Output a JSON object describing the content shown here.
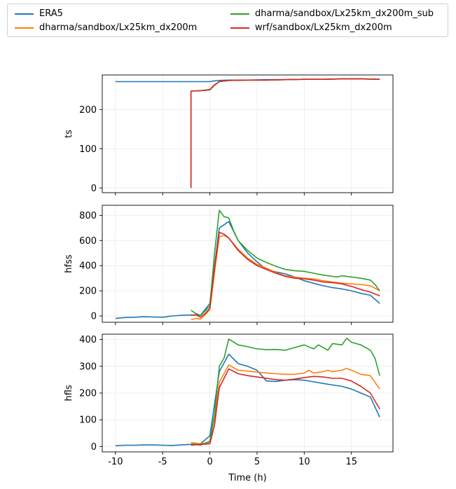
{
  "chart_data": {
    "type": "line",
    "xlabel": "Time (h)",
    "xlim": [
      -11.4,
      19.4
    ],
    "xticks": [
      -10,
      -5,
      0,
      5,
      10,
      15
    ],
    "legend_placement": "top",
    "grid": true,
    "legend": [
      {
        "name": "ERA5",
        "color": "#1f77b4"
      },
      {
        "name": "dharma/sandbox/Lx25km_dx200m",
        "color": "#ff7f0e"
      },
      {
        "name": "dharma/sandbox/Lx25km_dx200m_sub",
        "color": "#2ca02c"
      },
      {
        "name": "wrf/sandbox/Lx25km_dx200m",
        "color": "#d62728"
      }
    ],
    "panels": [
      {
        "ylabel": "ts",
        "ylim": [
          -12,
          288
        ],
        "yticks": [
          0,
          100,
          200
        ],
        "series": [
          {
            "color": "#1f77b4",
            "x": [
              -10,
              -8,
              -6,
              -4,
              -2,
              0,
              0.5,
              1,
              2,
              4,
              6,
              8,
              10,
              12,
              14,
              16,
              18
            ],
            "y": [
              271,
              271,
              271,
              271,
              271,
              271,
              273,
              274,
              275,
              275,
              276,
              276,
              277,
              277,
              278,
              278,
              277
            ]
          },
          {
            "color": "#ff7f0e",
            "x": [
              -2,
              -2,
              -1,
              0,
              0.5,
              1,
              2,
              4,
              6,
              8,
              10,
              12,
              14,
              16,
              18
            ],
            "y": [
              0,
              247,
              248,
              250,
              262,
              271,
              274,
              275,
              275,
              276,
              277,
              277,
              278,
              278,
              277
            ]
          },
          {
            "color": "#2ca02c",
            "x": [
              -2,
              -2,
              -1,
              0,
              0.5,
              1,
              2,
              4,
              6,
              8,
              10,
              12,
              14,
              16,
              18
            ],
            "y": [
              0,
              247,
              248,
              250,
              262,
              271,
              274,
              275,
              275,
              276,
              277,
              277,
              278,
              278,
              277
            ]
          },
          {
            "color": "#d62728",
            "x": [
              -2,
              -2,
              -1,
              0,
              0.5,
              1,
              2,
              4,
              6,
              8,
              10,
              12,
              14,
              16,
              18
            ],
            "y": [
              0,
              247,
              248,
              251,
              263,
              271,
              274,
              275,
              275,
              276,
              277,
              277,
              278,
              278,
              277
            ]
          }
        ]
      },
      {
        "ylabel": "hfss",
        "ylim": [
          -50,
          880
        ],
        "yticks": [
          0,
          200,
          400,
          600,
          800
        ],
        "series": [
          {
            "color": "#1f77b4",
            "x": [
              -10,
              -9,
              -8,
              -7,
              -6,
              -5,
              -4,
              -3,
              -2,
              -1,
              0,
              1,
              2,
              3,
              4,
              5,
              6,
              7,
              8,
              9,
              10,
              11,
              12,
              13,
              14,
              15,
              16,
              17,
              18
            ],
            "y": [
              -20,
              -12,
              -10,
              -6,
              -8,
              -10,
              0,
              5,
              8,
              5,
              100,
              700,
              750,
              600,
              500,
              430,
              370,
              350,
              335,
              310,
              280,
              260,
              240,
              225,
              215,
              200,
              180,
              165,
              100
            ]
          },
          {
            "color": "#ff7f0e",
            "x": [
              -2,
              -1.5,
              -1,
              -0.5,
              0,
              0.5,
              1,
              1.5,
              2,
              3,
              4,
              5,
              6,
              7,
              8,
              9,
              10,
              11,
              12,
              13,
              14,
              15,
              16,
              17,
              18
            ],
            "y": [
              -30,
              -20,
              -25,
              10,
              50,
              350,
              630,
              640,
              620,
              530,
              460,
              410,
              380,
              345,
              320,
              310,
              300,
              295,
              280,
              270,
              260,
              255,
              250,
              240,
              200
            ]
          },
          {
            "color": "#2ca02c",
            "x": [
              -2,
              -1.5,
              -1,
              -0.5,
              0,
              0.5,
              1,
              1.5,
              2,
              2.5,
              3,
              4,
              5,
              6,
              7,
              8,
              9,
              10,
              11,
              12,
              13,
              13.5,
              14,
              15,
              16,
              17,
              17.5,
              18
            ],
            "y": [
              45,
              20,
              5,
              40,
              80,
              500,
              840,
              790,
              780,
              680,
              600,
              520,
              460,
              425,
              395,
              370,
              360,
              355,
              340,
              325,
              315,
              310,
              320,
              310,
              300,
              285,
              250,
              200
            ]
          },
          {
            "color": "#d62728",
            "x": [
              -2,
              -1.5,
              -1,
              -0.5,
              0,
              0.5,
              1,
              1.5,
              2,
              3,
              4,
              5,
              6,
              7,
              8,
              9,
              10,
              11,
              12,
              13,
              14,
              15,
              16,
              17,
              18
            ],
            "y": [
              5,
              10,
              -10,
              20,
              60,
              380,
              665,
              650,
              620,
              520,
              450,
              400,
              370,
              340,
              315,
              300,
              295,
              285,
              270,
              265,
              255,
              235,
              210,
              190,
              160
            ]
          }
        ]
      },
      {
        "ylabel": "hfls",
        "ylim": [
          -20,
          420
        ],
        "yticks": [
          0,
          100,
          200,
          300,
          400
        ],
        "series": [
          {
            "color": "#1f77b4",
            "x": [
              -10,
              -9,
              -8,
              -7,
              -6,
              -5,
              -4,
              -3,
              -2,
              -1,
              0,
              1,
              2,
              3,
              4,
              5,
              6,
              7,
              8,
              9,
              10,
              11,
              12,
              13,
              14,
              15,
              16,
              17,
              18
            ],
            "y": [
              3,
              5,
              5,
              6,
              6,
              5,
              4,
              6,
              8,
              10,
              40,
              280,
              345,
              310,
              300,
              285,
              245,
              243,
              248,
              250,
              248,
              242,
              236,
              230,
              225,
              215,
              200,
              185,
              110
            ]
          },
          {
            "color": "#ff7f0e",
            "x": [
              -2,
              -1,
              0,
              0.5,
              1,
              2,
              2.5,
              3,
              4,
              5,
              6,
              7,
              8,
              9,
              10,
              10.5,
              11,
              12,
              12.5,
              13,
              14,
              14.5,
              15,
              16,
              17,
              18
            ],
            "y": [
              15,
              10,
              15,
              110,
              240,
              305,
              295,
              285,
              282,
              278,
              275,
              272,
              270,
              270,
              275,
              285,
              275,
              280,
              285,
              280,
              285,
              292,
              285,
              270,
              265,
              215
            ]
          },
          {
            "color": "#2ca02c",
            "x": [
              -2,
              -1,
              0,
              0.5,
              1,
              1.5,
              2,
              3,
              4,
              5,
              6,
              7,
              8,
              9,
              10,
              11,
              11.5,
              12,
              12.5,
              13,
              14,
              14.5,
              15,
              16,
              17,
              17.5,
              18
            ],
            "y": [
              10,
              5,
              20,
              120,
              300,
              330,
              402,
              380,
              373,
              365,
              362,
              363,
              360,
              370,
              380,
              365,
              380,
              370,
              360,
              385,
              380,
              405,
              390,
              380,
              360,
              330,
              265
            ]
          },
          {
            "color": "#d62728",
            "x": [
              -2,
              -1,
              0,
              0.5,
              1,
              2,
              3,
              4,
              5,
              6,
              7,
              8,
              9,
              10,
              11,
              12,
              13,
              14,
              15,
              16,
              17,
              18
            ],
            "y": [
              5,
              8,
              10,
              80,
              220,
              290,
              272,
              265,
              260,
              255,
              250,
              248,
              252,
              258,
              262,
              260,
              255,
              255,
              245,
              225,
              200,
              140
            ]
          }
        ]
      }
    ]
  }
}
